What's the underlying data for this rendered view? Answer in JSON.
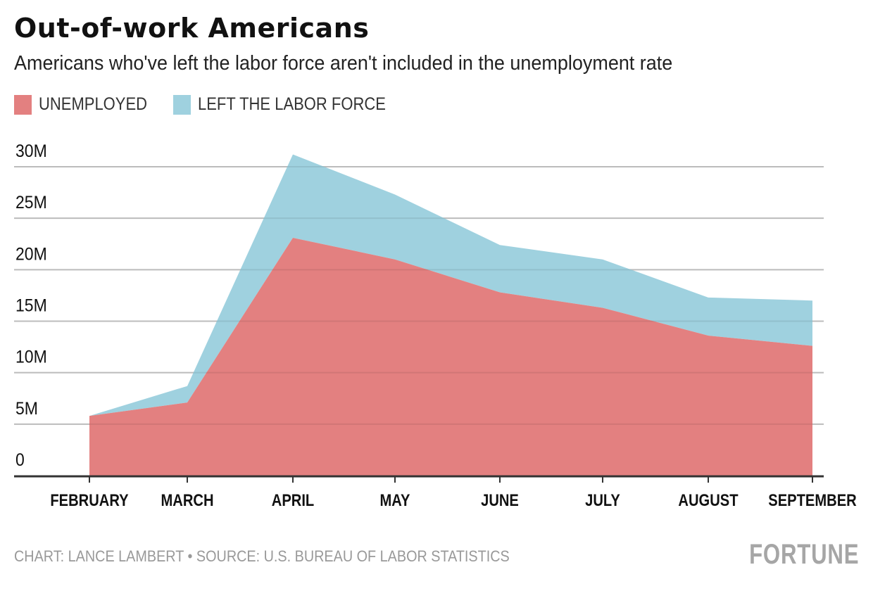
{
  "header": {
    "title": "Out-of-work Americans",
    "subtitle": "Americans who've left the labor force aren't included in the unemployment rate"
  },
  "footer": {
    "source": "CHART: LANCE LAMBERT • SOURCE: U.S. BUREAU OF LABOR STATISTICS",
    "logo": "FORTUNE"
  },
  "colors": {
    "unemployed": "#e38080",
    "left_labor_force": "#9fd1df",
    "gridline": "#cccccc",
    "axis": "#333333"
  },
  "chart_data": {
    "type": "area",
    "stacked": true,
    "title": "Out-of-work Americans",
    "subtitle": "Americans who've left the labor force aren't included in the unemployment rate",
    "xlabel": "",
    "ylabel": "",
    "categories": [
      "FEBRUARY",
      "MARCH",
      "APRIL",
      "MAY",
      "JUNE",
      "JULY",
      "AUGUST",
      "SEPTEMBER"
    ],
    "series": [
      {
        "name": "UNEMPLOYED",
        "values": [
          5.8,
          7.1,
          23.1,
          21.0,
          17.8,
          16.3,
          13.6,
          12.6
        ]
      },
      {
        "name": "LEFT THE LABOR FORCE",
        "values": [
          0.0,
          1.6,
          8.1,
          6.3,
          4.6,
          4.7,
          3.7,
          4.4
        ]
      }
    ],
    "units": "millions",
    "ylim": [
      0,
      30
    ],
    "yticks": [
      0,
      5,
      10,
      15,
      20,
      25,
      30
    ],
    "ytick_labels": [
      "0",
      "5M",
      "10M",
      "15M",
      "20M",
      "25M",
      "30M"
    ],
    "grid": true,
    "legend": "top-left"
  }
}
